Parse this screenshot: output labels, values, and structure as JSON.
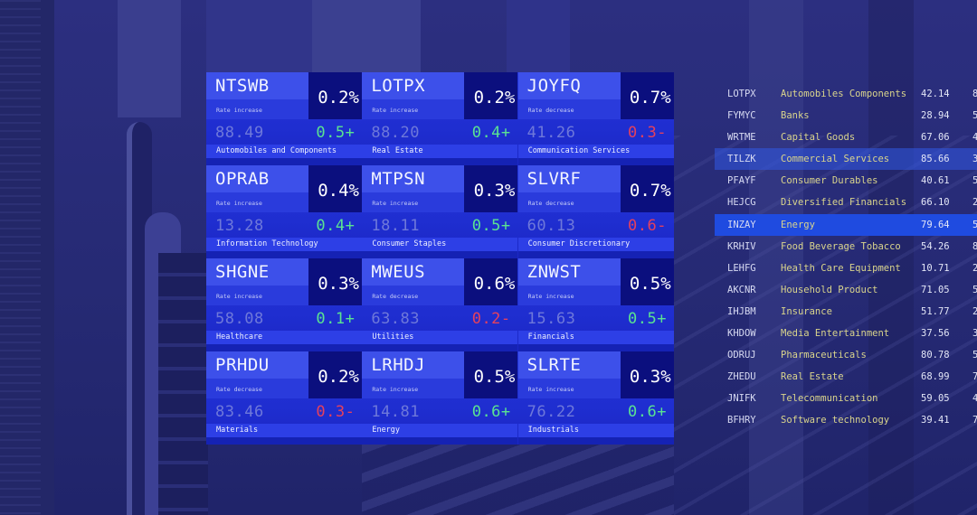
{
  "colors": {
    "panel_bg": "#1a22c8",
    "ticker_band": "#3d50ea",
    "pct_box": "#0b0f7e",
    "category_strip": "#2d3fe6",
    "positive": "#5ae391",
    "negative": "#e5405d",
    "sector_text": "#d9d48c",
    "row_highlight": "#1f4be0"
  },
  "cards": [
    {
      "ticker": "NTSWB",
      "pct": "0.2%",
      "label": "Rate increase",
      "price": "88.49",
      "change": "0.5+",
      "direction": "up",
      "category": "Automobiles and Components"
    },
    {
      "ticker": "LOTPX",
      "pct": "0.2%",
      "label": "Rate increase",
      "price": "88.20",
      "change": "0.4+",
      "direction": "up",
      "category": "Real Estate"
    },
    {
      "ticker": "JOYFQ",
      "pct": "0.7%",
      "label": "Rate decrease",
      "price": "41.26",
      "change": "0.3-",
      "direction": "down",
      "category": "Communication Services"
    },
    {
      "ticker": "OPRAB",
      "pct": "0.4%",
      "label": "Rate increase",
      "price": "13.28",
      "change": "0.4+",
      "direction": "up",
      "category": "Information Technology"
    },
    {
      "ticker": "MTPSN",
      "pct": "0.3%",
      "label": "Rate increase",
      "price": "18.11",
      "change": "0.5+",
      "direction": "up",
      "category": "Consumer Staples"
    },
    {
      "ticker": "SLVRF",
      "pct": "0.7%",
      "label": "Rate decrease",
      "price": "60.13",
      "change": "0.6-",
      "direction": "down",
      "category": "Consumer Discretionary"
    },
    {
      "ticker": "SHGNE",
      "pct": "0.3%",
      "label": "Rate increase",
      "price": "58.08",
      "change": "0.1+",
      "direction": "up",
      "category": "Healthcare"
    },
    {
      "ticker": "MWEUS",
      "pct": "0.6%",
      "label": "Rate decrease",
      "price": "63.83",
      "change": "0.2-",
      "direction": "down",
      "category": "Utilities"
    },
    {
      "ticker": "ZNWST",
      "pct": "0.5%",
      "label": "Rate increase",
      "price": "15.63",
      "change": "0.5+",
      "direction": "up",
      "category": "Financials"
    },
    {
      "ticker": "PRHDU",
      "pct": "0.2%",
      "label": "Rate decrease",
      "price": "83.46",
      "change": "0.3-",
      "direction": "down",
      "category": "Materials"
    },
    {
      "ticker": "LRHDJ",
      "pct": "0.5%",
      "label": "Rate increase",
      "price": "14.81",
      "change": "0.6+",
      "direction": "up",
      "category": "Energy"
    },
    {
      "ticker": "SLRTE",
      "pct": "0.3%",
      "label": "Rate increase",
      "price": "76.22",
      "change": "0.6+",
      "direction": "up",
      "category": "Industrials"
    }
  ],
  "table": {
    "rows": [
      {
        "ticker": "LOTPX",
        "sector": "Automobiles Components",
        "value": "42.14",
        "extra": "8",
        "highlight": ""
      },
      {
        "ticker": "FYMYC",
        "sector": "Banks",
        "value": "28.94",
        "extra": "5",
        "highlight": ""
      },
      {
        "ticker": "WRTME",
        "sector": "Capital Goods",
        "value": "67.06",
        "extra": "4",
        "highlight": ""
      },
      {
        "ticker": "TILZK",
        "sector": "Commercial Services",
        "value": "85.66",
        "extra": "3",
        "highlight": "soft"
      },
      {
        "ticker": "PFAYF",
        "sector": "Consumer Durables",
        "value": "40.61",
        "extra": "5",
        "highlight": ""
      },
      {
        "ticker": "HEJCG",
        "sector": "Diversified Financials",
        "value": "66.10",
        "extra": "2",
        "highlight": ""
      },
      {
        "ticker": "INZAY",
        "sector": "Energy",
        "value": "79.64",
        "extra": "5",
        "highlight": "strong"
      },
      {
        "ticker": "KRHIV",
        "sector": "Food Beverage Tobacco",
        "value": "54.26",
        "extra": "8",
        "highlight": ""
      },
      {
        "ticker": "LEHFG",
        "sector": "Health Care Equipment",
        "value": "10.71",
        "extra": "2",
        "highlight": ""
      },
      {
        "ticker": "AKCNR",
        "sector": "Household Product",
        "value": "71.05",
        "extra": "5",
        "highlight": ""
      },
      {
        "ticker": "IHJBM",
        "sector": "Insurance",
        "value": "51.77",
        "extra": "2",
        "highlight": ""
      },
      {
        "ticker": "KHDOW",
        "sector": "Media Entertainment",
        "value": "37.56",
        "extra": "3",
        "highlight": ""
      },
      {
        "ticker": "ODRUJ",
        "sector": "Pharmaceuticals",
        "value": "80.78",
        "extra": "5",
        "highlight": ""
      },
      {
        "ticker": "ZHEDU",
        "sector": "Real Estate",
        "value": "68.99",
        "extra": "7",
        "highlight": ""
      },
      {
        "ticker": "JNIFK",
        "sector": "Telecommunication",
        "value": "59.05",
        "extra": "4",
        "highlight": ""
      },
      {
        "ticker": "BFHRY",
        "sector": "Software technology",
        "value": "39.41",
        "extra": "7",
        "highlight": ""
      }
    ]
  }
}
